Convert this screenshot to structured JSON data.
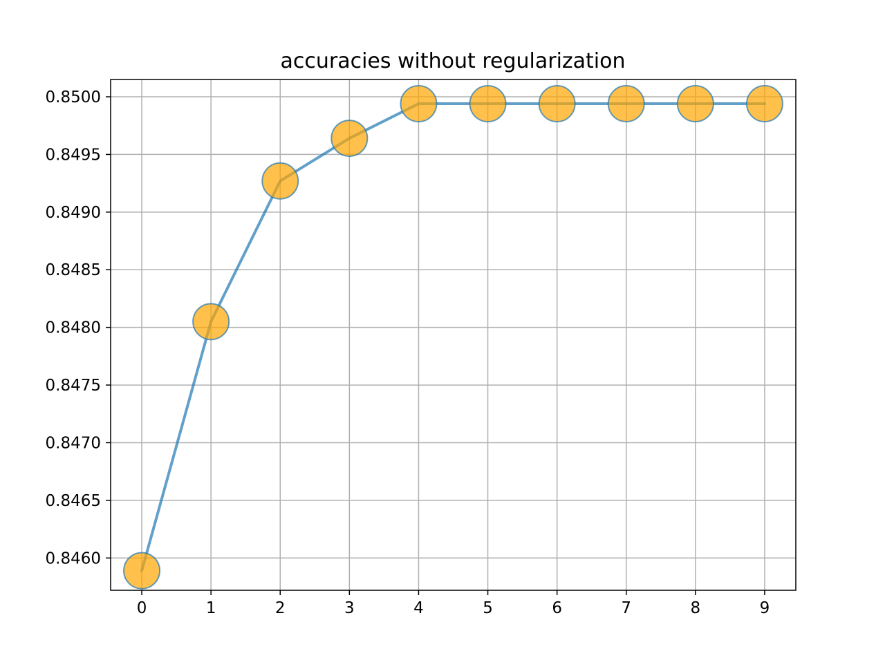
{
  "chart_data": {
    "type": "line",
    "title": "accuracies without regularization",
    "xlabel": "",
    "ylabel": "",
    "x": [
      0,
      1,
      2,
      3,
      4,
      5,
      6,
      7,
      8,
      9
    ],
    "series": [
      {
        "values": [
          0.84589,
          0.84805,
          0.84927,
          0.84964,
          0.84994,
          0.84994,
          0.84994,
          0.84994,
          0.84994,
          0.84994
        ],
        "line_color": "#1f77b4",
        "marker_color": "#ffa500",
        "marker": "circle"
      }
    ],
    "x_ticks": [
      "0",
      "1",
      "2",
      "3",
      "4",
      "5",
      "6",
      "7",
      "8",
      "9"
    ],
    "y_ticks": [
      "0.8460",
      "0.8465",
      "0.8470",
      "0.8475",
      "0.8480",
      "0.8485",
      "0.8490",
      "0.8495",
      "0.8500"
    ],
    "xlim": [
      -0.45,
      9.45
    ],
    "ylim": [
      0.84572,
      0.85015
    ],
    "grid": true,
    "legend": "none"
  }
}
